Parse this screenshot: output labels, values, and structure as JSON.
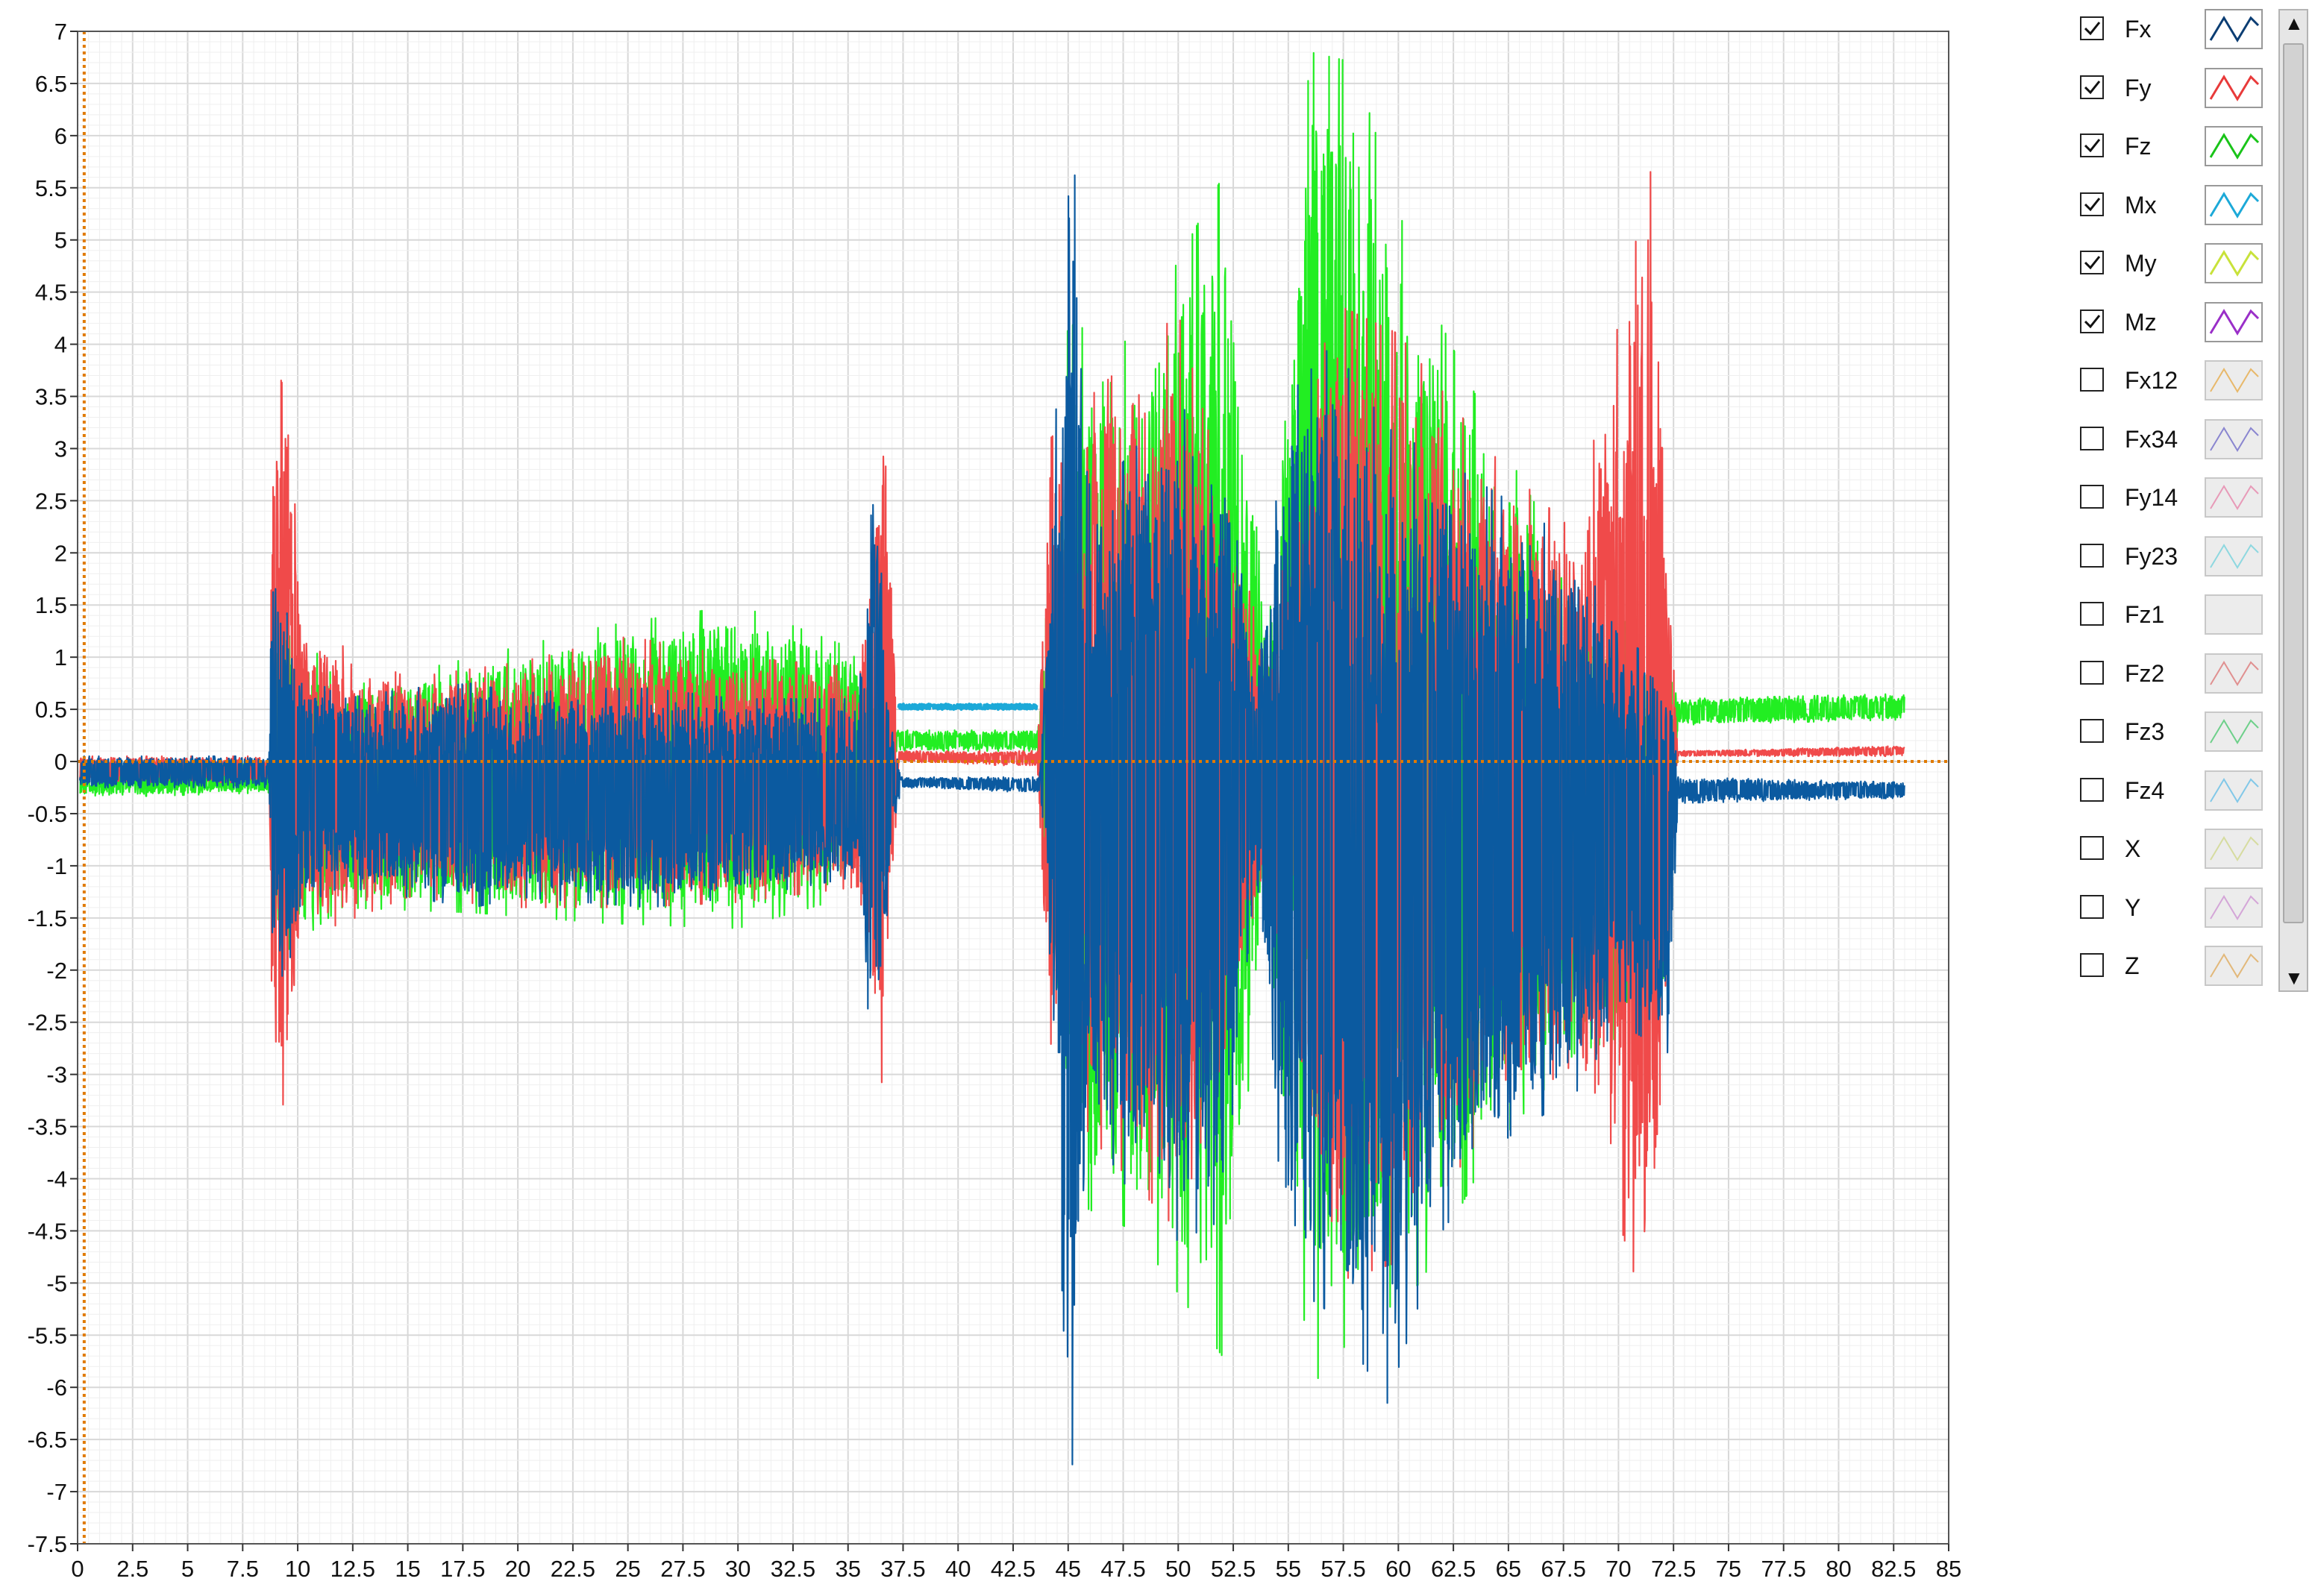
{
  "chart_data": {
    "type": "line",
    "title": "",
    "xlabel": "",
    "ylabel": "",
    "xlim": [
      0,
      85
    ],
    "ylim": [
      -7.5,
      7
    ],
    "x_ticks": [
      "0",
      "2.5",
      "5",
      "7.5",
      "10",
      "12.5",
      "15",
      "17.5",
      "20",
      "22.5",
      "25",
      "27.5",
      "30",
      "32.5",
      "35",
      "37.5",
      "40",
      "42.5",
      "45",
      "47.5",
      "50",
      "52.5",
      "55",
      "57.5",
      "60",
      "62.5",
      "65",
      "67.5",
      "70",
      "72.5",
      "75",
      "77.5",
      "80",
      "82.5",
      "85"
    ],
    "y_ticks": [
      "7",
      "6.5",
      "6",
      "5.5",
      "5",
      "4.5",
      "4",
      "3.5",
      "3",
      "2.5",
      "2",
      "1.5",
      "1",
      "0.5",
      "0",
      "-0.5",
      "-1",
      "-1.5",
      "-2",
      "-2.5",
      "-3",
      "-3.5",
      "-4",
      "-4.5",
      "-5",
      "-5.5",
      "-6",
      "-6.5",
      "-7",
      "-7.5"
    ],
    "grid": true,
    "cursor_x": 0.3,
    "cursor_y": 0,
    "legend_position": "right",
    "series": [
      {
        "name": "Fx",
        "color": "#0b5aa0",
        "envelope": [
          {
            "x": 0.1,
            "hi": 0.05,
            "lo": -0.25
          },
          {
            "x": 8.7,
            "hi": 0.05,
            "lo": -0.25
          },
          {
            "x": 8.8,
            "hi": 1.6,
            "lo": -1.95
          },
          {
            "x": 9.5,
            "hi": 1.8,
            "lo": -2.1
          },
          {
            "x": 10.0,
            "hi": 0.9,
            "lo": -1.4
          },
          {
            "x": 12,
            "hi": 0.6,
            "lo": -1.2
          },
          {
            "x": 15,
            "hi": 0.7,
            "lo": -1.3
          },
          {
            "x": 18,
            "hi": 0.75,
            "lo": -1.4
          },
          {
            "x": 20,
            "hi": 0.65,
            "lo": -1.3
          },
          {
            "x": 23,
            "hi": 0.7,
            "lo": -1.35
          },
          {
            "x": 26,
            "hi": 0.7,
            "lo": -1.4
          },
          {
            "x": 30,
            "hi": 0.6,
            "lo": -1.3
          },
          {
            "x": 33,
            "hi": 0.6,
            "lo": -1.2
          },
          {
            "x": 35.5,
            "hi": 0.6,
            "lo": -1.1
          },
          {
            "x": 36.1,
            "hi": 3.0,
            "lo": -3.4
          },
          {
            "x": 37.0,
            "hi": 0.4,
            "lo": -0.8
          },
          {
            "x": 37.4,
            "hi": -0.15,
            "lo": -0.25
          },
          {
            "x": 43.7,
            "hi": -0.15,
            "lo": -0.3
          },
          {
            "x": 44,
            "hi": 1.2,
            "lo": -1.2
          },
          {
            "x": 45.1,
            "hi": 6.5,
            "lo": -7.1
          },
          {
            "x": 46,
            "hi": 2.5,
            "lo": -3.5
          },
          {
            "x": 48,
            "hi": 3.0,
            "lo": -4.2
          },
          {
            "x": 50,
            "hi": 3.4,
            "lo": -4.6
          },
          {
            "x": 52,
            "hi": 3.2,
            "lo": -4.4
          },
          {
            "x": 53.5,
            "hi": 0.8,
            "lo": -1.1
          },
          {
            "x": 55,
            "hi": 3.5,
            "lo": -5.0
          },
          {
            "x": 57,
            "hi": 4.0,
            "lo": -5.3
          },
          {
            "x": 59.5,
            "hi": 3.2,
            "lo": -6.15
          },
          {
            "x": 62,
            "hi": 2.9,
            "lo": -4.5
          },
          {
            "x": 65,
            "hi": 2.5,
            "lo": -3.6
          },
          {
            "x": 68,
            "hi": 2.1,
            "lo": -3.2
          },
          {
            "x": 70,
            "hi": 1.2,
            "lo": -2.5
          },
          {
            "x": 72.3,
            "hi": 0.9,
            "lo": -2.8
          },
          {
            "x": 72.7,
            "hi": -0.15,
            "lo": -0.4
          },
          {
            "x": 83,
            "hi": -0.2,
            "lo": -0.35
          }
        ]
      },
      {
        "name": "Fy",
        "color": "#f04a4a",
        "envelope": [
          {
            "x": 0.1,
            "hi": 0.05,
            "lo": -0.2
          },
          {
            "x": 8.7,
            "hi": 0.05,
            "lo": -0.2
          },
          {
            "x": 8.9,
            "hi": 3.85,
            "lo": -3.6
          },
          {
            "x": 9.6,
            "hi": 3.45,
            "lo": -3.1
          },
          {
            "x": 10.2,
            "hi": 1.3,
            "lo": -1.7
          },
          {
            "x": 15,
            "hi": 0.8,
            "lo": -1.3
          },
          {
            "x": 20,
            "hi": 0.95,
            "lo": -1.4
          },
          {
            "x": 25,
            "hi": 1.2,
            "lo": -1.4
          },
          {
            "x": 30,
            "hi": 1.0,
            "lo": -1.35
          },
          {
            "x": 35.5,
            "hi": 0.9,
            "lo": -1.2
          },
          {
            "x": 36.6,
            "hi": 3.35,
            "lo": -3.2
          },
          {
            "x": 37.3,
            "hi": 0.1,
            "lo": 0.0
          },
          {
            "x": 43.6,
            "hi": 0.1,
            "lo": -0.05
          },
          {
            "x": 44.2,
            "hi": 3.1,
            "lo": -2.7
          },
          {
            "x": 46,
            "hi": 3.5,
            "lo": -3.6
          },
          {
            "x": 50,
            "hi": 4.3,
            "lo": -4.5
          },
          {
            "x": 54,
            "hi": 1.0,
            "lo": -1.2
          },
          {
            "x": 57,
            "hi": 4.4,
            "lo": -5.0
          },
          {
            "x": 60,
            "hi": 4.1,
            "lo": -4.8
          },
          {
            "x": 64,
            "hi": 3.0,
            "lo": -3.5
          },
          {
            "x": 68,
            "hi": 2.2,
            "lo": -2.9
          },
          {
            "x": 71.5,
            "hi": 5.7,
            "lo": -5.5
          },
          {
            "x": 72.7,
            "hi": 0.1,
            "lo": 0.05
          },
          {
            "x": 83,
            "hi": 0.15,
            "lo": 0.05
          }
        ]
      },
      {
        "name": "Fz",
        "color": "#22ee22",
        "envelope": [
          {
            "x": 0.1,
            "hi": 0.0,
            "lo": -0.35
          },
          {
            "x": 8.7,
            "hi": 0.0,
            "lo": -0.3
          },
          {
            "x": 9.0,
            "hi": 1.6,
            "lo": -1.9
          },
          {
            "x": 12,
            "hi": 0.7,
            "lo": -1.4
          },
          {
            "x": 18,
            "hi": 1.0,
            "lo": -1.45
          },
          {
            "x": 24,
            "hi": 1.3,
            "lo": -1.55
          },
          {
            "x": 30,
            "hi": 1.5,
            "lo": -1.6
          },
          {
            "x": 35,
            "hi": 1.1,
            "lo": -1.3
          },
          {
            "x": 37.3,
            "hi": 0.3,
            "lo": 0.1
          },
          {
            "x": 43.6,
            "hi": 0.3,
            "lo": 0.1
          },
          {
            "x": 45,
            "hi": 4.2,
            "lo": -4.2
          },
          {
            "x": 48,
            "hi": 4.0,
            "lo": -4.5
          },
          {
            "x": 52,
            "hi": 5.6,
            "lo": -5.7
          },
          {
            "x": 54,
            "hi": 1.3,
            "lo": -1.4
          },
          {
            "x": 56,
            "hi": 6.8,
            "lo": -6.0
          },
          {
            "x": 58,
            "hi": 6.7,
            "lo": -5.5
          },
          {
            "x": 61,
            "hi": 4.6,
            "lo": -5.0
          },
          {
            "x": 64,
            "hi": 3.3,
            "lo": -3.8
          },
          {
            "x": 68,
            "hi": 1.8,
            "lo": -2.8
          },
          {
            "x": 72,
            "hi": 1.0,
            "lo": -2.5
          },
          {
            "x": 72.7,
            "hi": 0.6,
            "lo": 0.35
          },
          {
            "x": 83,
            "hi": 0.65,
            "lo": 0.4
          }
        ]
      },
      {
        "name": "Mx",
        "color": "#1ca9d8",
        "envelope": [
          {
            "x": 37.3,
            "hi": 0.55,
            "lo": 0.5
          },
          {
            "x": 43.6,
            "hi": 0.55,
            "lo": 0.5
          }
        ]
      }
    ]
  },
  "legend": {
    "items": [
      {
        "label": "Fx",
        "checked": true,
        "color": "#0b3d73",
        "enabled": true
      },
      {
        "label": "Fy",
        "checked": true,
        "color": "#e83a3a",
        "enabled": true
      },
      {
        "label": "Fz",
        "checked": true,
        "color": "#19c419",
        "enabled": true
      },
      {
        "label": "Mx",
        "checked": true,
        "color": "#1ca9d8",
        "enabled": true
      },
      {
        "label": "My",
        "checked": true,
        "color": "#c8e23a",
        "enabled": true
      },
      {
        "label": "Mz",
        "checked": true,
        "color": "#9a2fc8",
        "enabled": true
      },
      {
        "label": "Fx12",
        "checked": false,
        "color": "#e8b86a",
        "enabled": false
      },
      {
        "label": "Fx34",
        "checked": false,
        "color": "#8a86d0",
        "enabled": false
      },
      {
        "label": "Fy14",
        "checked": false,
        "color": "#e89ab8",
        "enabled": false
      },
      {
        "label": "Fy23",
        "checked": false,
        "color": "#8ed8e0",
        "enabled": false
      },
      {
        "label": "Fz1",
        "checked": false,
        "color": "",
        "enabled": false
      },
      {
        "label": "Fz2",
        "checked": false,
        "color": "#e09090",
        "enabled": false
      },
      {
        "label": "Fz3",
        "checked": false,
        "color": "#6ed08a",
        "enabled": false
      },
      {
        "label": "Fz4",
        "checked": false,
        "color": "#82c8e8",
        "enabled": false
      },
      {
        "label": "X",
        "checked": false,
        "color": "#d6dca0",
        "enabled": false
      },
      {
        "label": "Y",
        "checked": false,
        "color": "#d4a6d8",
        "enabled": false
      },
      {
        "label": "Z",
        "checked": false,
        "color": "#e2b87a",
        "enabled": false
      }
    ]
  },
  "scrollbar": {
    "up_arrow": "▲",
    "down_arrow": "▼"
  }
}
